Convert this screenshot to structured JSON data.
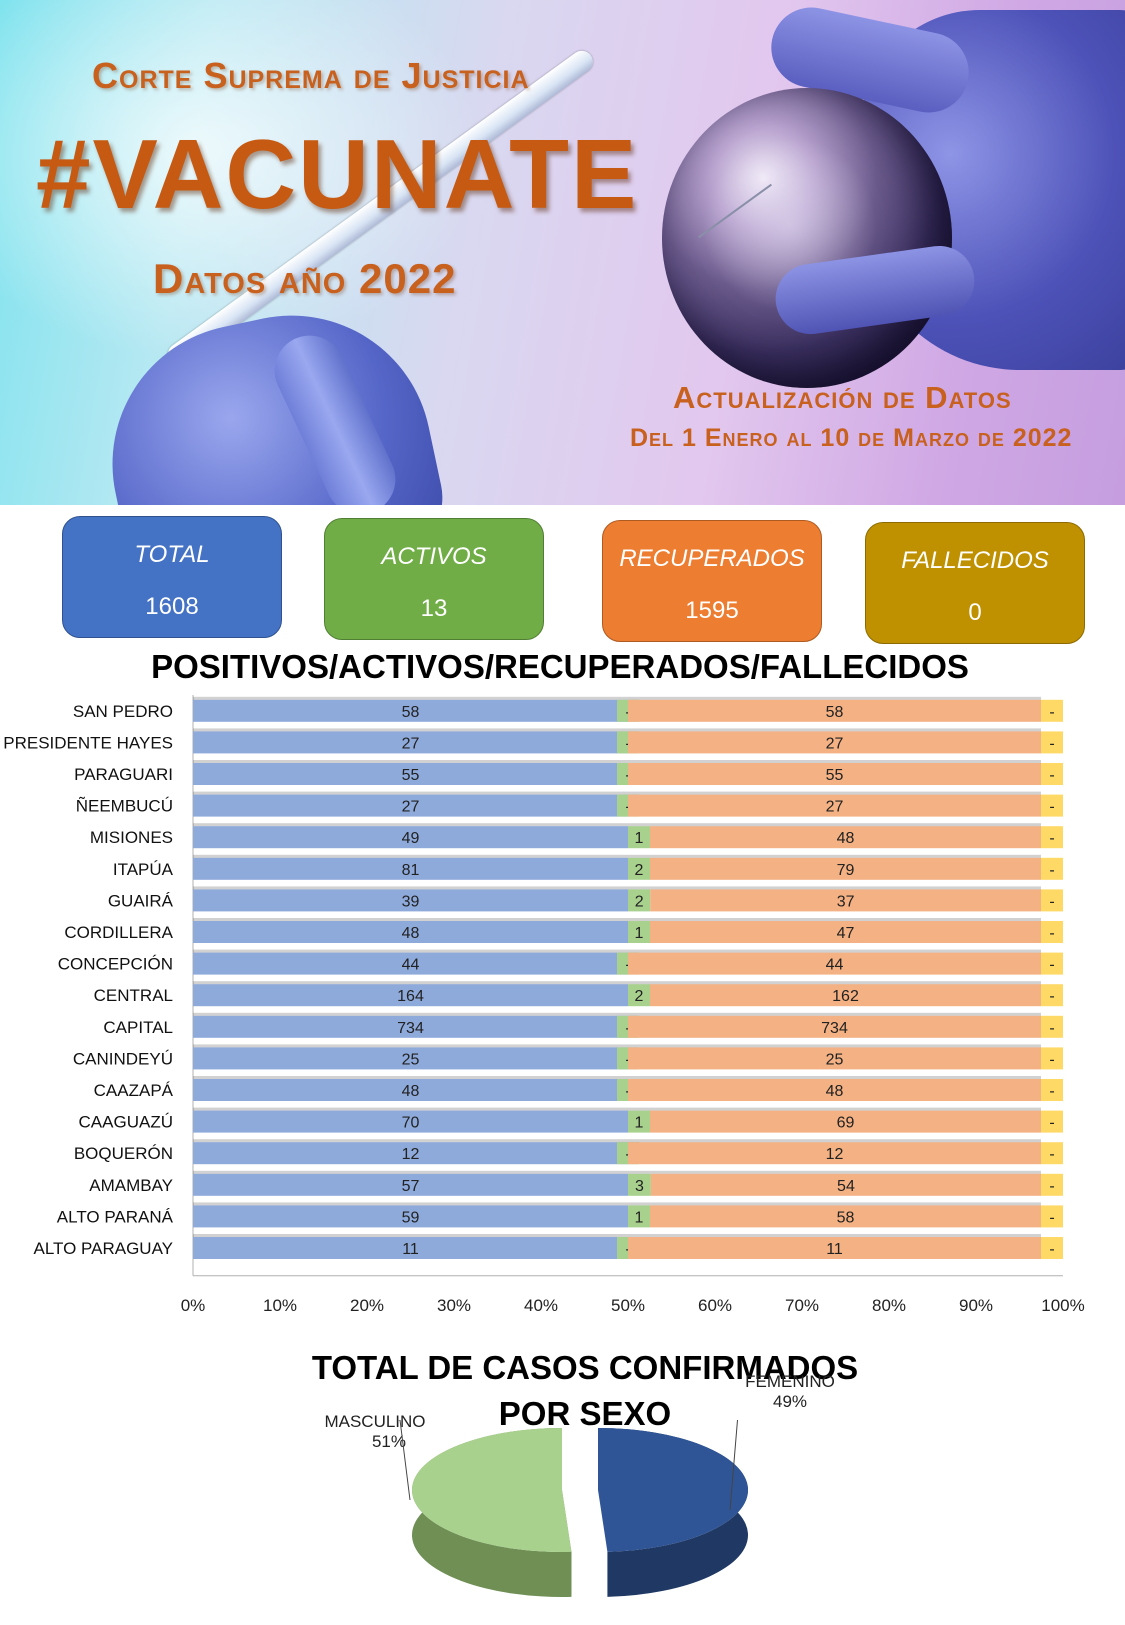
{
  "header": {
    "org": "Corte Suprema de Justicia",
    "campaign": "#VACUNATE",
    "year_label": "Datos año 2022",
    "update_title": "Actualización de Datos",
    "update_range": "Del 1 Enero al 10 de Marzo de 2022"
  },
  "summary": [
    {
      "label": "TOTAL",
      "value": "1608",
      "color": "#4472c4"
    },
    {
      "label": "ACTIVOS",
      "value": "13",
      "color": "#70ad47"
    },
    {
      "label": "RECUPERADOS",
      "value": "1595",
      "color": "#ed7d31"
    },
    {
      "label": "FALLECIDOS",
      "value": "0",
      "color": "#bf9000"
    }
  ],
  "chart_data": [
    {
      "type": "bar",
      "orientation": "horizontal-100%-stacked",
      "title": "POSITIVOS/ACTIVOS/RECUPERADOS/FALLECIDOS",
      "x_ticks": [
        "0%",
        "10%",
        "20%",
        "30%",
        "40%",
        "50%",
        "60%",
        "70%",
        "80%",
        "90%",
        "100%"
      ],
      "categories": [
        "SAN PEDRO",
        "PRESIDENTE HAYES",
        "PARAGUARI",
        "ÑEEMBUCÚ",
        "MISIONES",
        "ITAPÚA",
        "GUAIRÁ",
        "CORDILLERA ",
        "CONCEPCIÓN",
        "CENTRAL",
        "CAPITAL",
        "CANINDEYÚ",
        "CAAZAPÁ",
        "CAAGUAZÚ",
        "BOQUERÓN",
        "AMAMBAY",
        "ALTO PARANÁ",
        "ALTO PARAGUAY"
      ],
      "series": [
        {
          "key": "positivos",
          "color": "#8eaadb",
          "values": [
            58,
            27,
            55,
            27,
            49,
            81,
            39,
            48,
            44,
            164,
            734,
            25,
            48,
            70,
            12,
            57,
            59,
            11
          ],
          "labels": [
            "58",
            "27",
            "55",
            "27",
            "49",
            "81",
            "39",
            "48",
            "44",
            "164",
            "734",
            "25",
            "48",
            "70",
            "12",
            "57",
            "59",
            "11"
          ]
        },
        {
          "key": "activos",
          "color": "#a9d18e",
          "values": [
            0,
            0,
            0,
            0,
            1,
            2,
            2,
            1,
            0,
            2,
            0,
            0,
            0,
            1,
            0,
            3,
            1,
            0
          ],
          "labels": [
            "-",
            "-",
            "-",
            "-",
            "1",
            "2",
            "2",
            "1",
            "-",
            "2",
            "-",
            "-",
            "-",
            "1",
            "-",
            "3",
            "1",
            "-"
          ]
        },
        {
          "key": "recuperados",
          "color": "#f4b183",
          "values": [
            58,
            27,
            55,
            27,
            48,
            79,
            37,
            47,
            44,
            162,
            734,
            25,
            48,
            69,
            12,
            54,
            58,
            11
          ],
          "labels": [
            "58",
            "27",
            "55",
            "27",
            "48",
            "79",
            "37",
            "47",
            "44",
            "162",
            "734",
            "25",
            "48",
            "69",
            "12",
            "54",
            "58",
            "11"
          ]
        },
        {
          "key": "fallecidos",
          "color": "#ffd966",
          "values": [
            0,
            0,
            0,
            0,
            0,
            0,
            0,
            0,
            0,
            0,
            0,
            0,
            0,
            0,
            0,
            0,
            0,
            0
          ],
          "labels": [
            "-",
            "-",
            "-",
            "-",
            "-",
            "-",
            "-",
            "-",
            "-",
            "-",
            "-",
            "-",
            "-",
            "-",
            "-",
            "-",
            "-",
            "-"
          ]
        }
      ]
    },
    {
      "type": "pie",
      "title": "TOTAL DE CASOS CONFIRMADOS POR SEXO",
      "title_line1": "TOTAL DE CASOS CONFIRMADOS",
      "title_line2": "POR SEXO",
      "slices": [
        {
          "name": "MASCULINO",
          "value": 51,
          "label": "51%",
          "color": "#a9d18e"
        },
        {
          "name": "FEMENINO",
          "value": 49,
          "label": "49%",
          "color": "#2f5597"
        }
      ]
    }
  ]
}
